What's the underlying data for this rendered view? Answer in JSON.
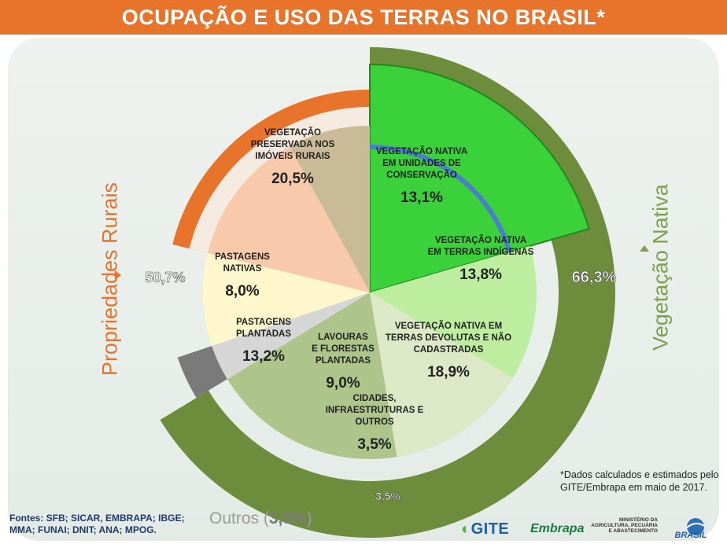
{
  "title": "OCUPAÇÃO E USO DAS TERRAS NO BRASIL*",
  "side_labels": {
    "left": "Propriedades Rurais",
    "right": "Vegetação Nativa"
  },
  "outer_labels": {
    "rural": "50,7%",
    "native": "66,3%",
    "others": "3,5%"
  },
  "outros": {
    "text": "Outros (",
    "value": "3,5%",
    "close": ")"
  },
  "note": "*Dados calculados e estimados pelo GITE/Embrapa em maio de 2017.",
  "sources": "Fontes: SFB; SICAR, EMBRAPA; IBGE; MMA; FUNAI; DNIT; ANA; MPOG.",
  "logos": {
    "gite": "GITE",
    "embrapa": "Embrapa",
    "ministry": "MINISTÉRIO DA AGRICULTURA, PECUÁRIA E ABASTECIMENTO",
    "brasil": "BRASIL"
  },
  "colors": {
    "rural": "#e8732a",
    "native": "#6e8d3c",
    "others": "#7a7a7a",
    "preserved": "#3ad13a",
    "conservation": "#bdeea0",
    "indigenous": "#dde8c6",
    "devolutas": "#adc58a",
    "cities": "#d6d6d6",
    "lavouras": "#fff7cc",
    "plantadas": "#f8c9ab",
    "nativas": "#c9bb98",
    "blue": "#4a7fcf"
  },
  "chart_data": {
    "type": "pie",
    "title": "OCUPAÇÃO E USO DAS TERRAS NO BRASIL*",
    "slices": [
      {
        "label": "VEGETAÇÃO PRESERVADA NOS IMÓVEIS RURAIS",
        "lines": [
          "VEGETAÇÃO",
          "PRESERVADA NOS",
          "IMÓVEIS RURAIS"
        ],
        "value": 20.5,
        "display": "20,5%"
      },
      {
        "label": "VEGETAÇÃO NATIVA EM UNIDADES DE CONSERVAÇÃO",
        "lines": [
          "VEGETAÇÃO NATIVA",
          "EM UNIDADES DE",
          "CONSERVAÇÃO"
        ],
        "value": 13.1,
        "display": "13,1%"
      },
      {
        "label": "VEGETAÇÃO NATIVA EM TERRAS INDÍGENAS",
        "lines": [
          "VEGETAÇÃO NATIVA",
          "EM TERRAS INDÍGENAS"
        ],
        "value": 13.8,
        "display": "13,8%"
      },
      {
        "label": "VEGETAÇÃO NATIVA EM TERRAS DEVOLUTAS E NÃO CADASTRADAS",
        "lines": [
          "VEGETAÇÃO NATIVA EM",
          "TERRAS DEVOLUTAS E NÃO",
          "CADASTRADAS"
        ],
        "value": 18.9,
        "display": "18,9%"
      },
      {
        "label": "CIDADES, INFRAESTRUTURAS E OUTROS",
        "lines": [
          "CIDADES,",
          "INFRAESTRUTURAS E",
          "OUTROS"
        ],
        "value": 3.5,
        "display": "3,5%"
      },
      {
        "label": "LAVOURAS E FLORESTAS PLANTADAS",
        "lines": [
          "LAVOURAS",
          "E FLORESTAS",
          "PLANTADAS"
        ],
        "value": 9.0,
        "display": "9,0%"
      },
      {
        "label": "PASTAGENS PLANTADAS",
        "lines": [
          "PASTAGENS",
          "PLANTADAS"
        ],
        "value": 13.2,
        "display": "13,2%"
      },
      {
        "label": "PASTAGENS NATIVAS",
        "lines": [
          "PASTAGENS",
          "NATIVAS"
        ],
        "value": 8.0,
        "display": "8,0%"
      }
    ],
    "groups": [
      {
        "label": "Propriedades Rurais",
        "value": 50.7,
        "display": "50,7%"
      },
      {
        "label": "Vegetação Nativa",
        "value": 66.3,
        "display": "66,3%"
      },
      {
        "label": "Outros",
        "value": 3.5,
        "display": "3,5%"
      }
    ]
  }
}
